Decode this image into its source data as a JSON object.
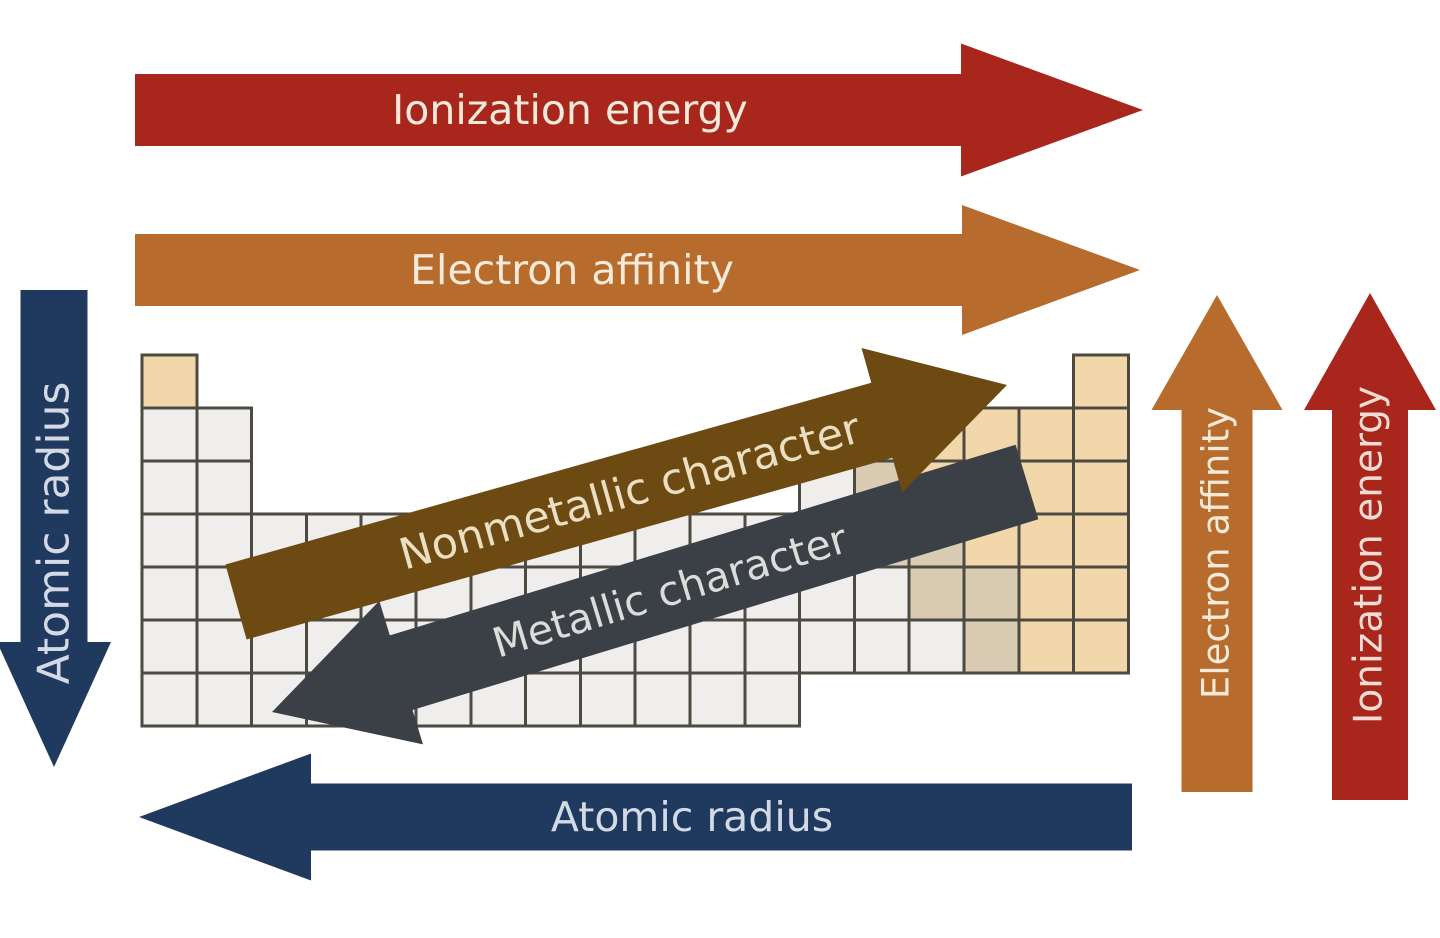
{
  "figure": {
    "description": "Periodic table trends diagram"
  },
  "colors": {
    "background": "#ffffff",
    "ionization_red": "#a9261d",
    "electron_affinity_orange": "#b76c2d",
    "atomic_radius_navy": "#20395f",
    "nonmetallic_brown": "#6d4a12",
    "metallic_slate": "#3b4046",
    "cell_metal": "#efeeec",
    "cell_metalloid": "#d9ccb2",
    "cell_nonmetal": "#f1d7a9",
    "cell_border": "#4d4a42",
    "text_on_warm": "#f3ead9",
    "text_on_navy": "#d3dae6",
    "text_on_brown": "#eadfc2",
    "text_on_slate": "#dcdcda",
    "text_on_red_side": "#f1dcd3"
  },
  "arrows": {
    "ionization_top": {
      "label": "Ionization energy",
      "direction": "right"
    },
    "electron_affinity_top": {
      "label": "Electron affinity",
      "direction": "right"
    },
    "atomic_radius_left": {
      "label": "Atomic radius",
      "direction": "down"
    },
    "atomic_radius_bottom": {
      "label": "Atomic radius",
      "direction": "left"
    },
    "electron_affinity_right": {
      "label": "Electron affinity",
      "direction": "up"
    },
    "ionization_right": {
      "label": "Ionization energy",
      "direction": "up"
    },
    "nonmetallic_diagonal": {
      "label": "Nonmetallic character",
      "direction": "up-right"
    },
    "metallic_diagonal": {
      "label": "Metallic character",
      "direction": "down-left"
    }
  },
  "periodic_table": {
    "columns": 18,
    "periods": 7,
    "cell_types": [
      "metal",
      "metalloid",
      "nonmetal"
    ],
    "rows": [
      {
        "period": 1,
        "segments": [
          {
            "from": 1,
            "to": 1,
            "type": "nonmetal"
          },
          {
            "from": 18,
            "to": 18,
            "type": "nonmetal"
          }
        ]
      },
      {
        "period": 2,
        "segments": [
          {
            "from": 1,
            "to": 2,
            "type": "metal"
          },
          {
            "from": 13,
            "to": 13,
            "type": "metalloid"
          },
          {
            "from": 14,
            "to": 18,
            "type": "nonmetal"
          }
        ]
      },
      {
        "period": 3,
        "segments": [
          {
            "from": 1,
            "to": 2,
            "type": "metal"
          },
          {
            "from": 13,
            "to": 13,
            "type": "metal"
          },
          {
            "from": 14,
            "to": 14,
            "type": "metalloid"
          },
          {
            "from": 15,
            "to": 18,
            "type": "nonmetal"
          }
        ]
      },
      {
        "period": 4,
        "segments": [
          {
            "from": 1,
            "to": 13,
            "type": "metal"
          },
          {
            "from": 14,
            "to": 15,
            "type": "metalloid"
          },
          {
            "from": 16,
            "to": 18,
            "type": "nonmetal"
          }
        ]
      },
      {
        "period": 5,
        "segments": [
          {
            "from": 1,
            "to": 14,
            "type": "metal"
          },
          {
            "from": 15,
            "to": 16,
            "type": "metalloid"
          },
          {
            "from": 17,
            "to": 18,
            "type": "nonmetal"
          }
        ]
      },
      {
        "period": 6,
        "segments": [
          {
            "from": 1,
            "to": 15,
            "type": "metal"
          },
          {
            "from": 16,
            "to": 16,
            "type": "metalloid"
          },
          {
            "from": 17,
            "to": 18,
            "type": "nonmetal"
          }
        ]
      },
      {
        "period": 7,
        "segments": [
          {
            "from": 1,
            "to": 12,
            "type": "metal"
          }
        ]
      }
    ]
  }
}
